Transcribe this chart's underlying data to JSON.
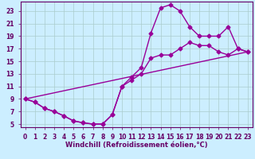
{
  "bg_color": "#cceeff",
  "line_color": "#990099",
  "grid_color": "#aacccc",
  "axis_color": "#660066",
  "xlim": [
    -0.5,
    23.5
  ],
  "ylim": [
    4.5,
    24.5
  ],
  "xticks": [
    0,
    1,
    2,
    3,
    4,
    5,
    6,
    7,
    8,
    9,
    10,
    11,
    12,
    13,
    14,
    15,
    16,
    17,
    18,
    19,
    20,
    21,
    22,
    23
  ],
  "yticks": [
    5,
    7,
    9,
    11,
    13,
    15,
    17,
    19,
    21,
    23
  ],
  "xlabel": "Windchill (Refroidissement éolien,°C)",
  "label_fontsize": 6.0,
  "tick_fontsize": 5.5,
  "linewidth": 1.0,
  "markersize": 2.5,
  "curve1_x": [
    0,
    1,
    2,
    3,
    4,
    5,
    6,
    7,
    8,
    9,
    10,
    11,
    12,
    13,
    14,
    15,
    16,
    17,
    18,
    19,
    20,
    21,
    22,
    23
  ],
  "curve1_y": [
    9,
    8.5,
    7.5,
    7.0,
    6.3,
    5.5,
    5.2,
    5.0,
    5.0,
    6.5,
    11.0,
    12.0,
    13.0,
    15.5,
    16.0,
    16.0,
    17.0,
    18.0,
    17.5,
    17.5,
    16.5,
    16.0,
    17.0,
    16.5
  ],
  "curve2_x": [
    0,
    1,
    2,
    3,
    4,
    5,
    6,
    7,
    8,
    9,
    10,
    11,
    12,
    13,
    14,
    15,
    16,
    17,
    18,
    19,
    20,
    21,
    22,
    23
  ],
  "curve2_y": [
    9,
    8.5,
    7.5,
    7.0,
    6.3,
    5.5,
    5.2,
    5.0,
    5.0,
    6.5,
    11.0,
    12.5,
    14.0,
    19.5,
    23.5,
    24.0,
    23.0,
    20.5,
    19.0,
    19.0,
    19.0,
    20.5,
    17.0,
    16.5
  ],
  "curve3_x": [
    0,
    23
  ],
  "curve3_y": [
    9,
    16.5
  ]
}
